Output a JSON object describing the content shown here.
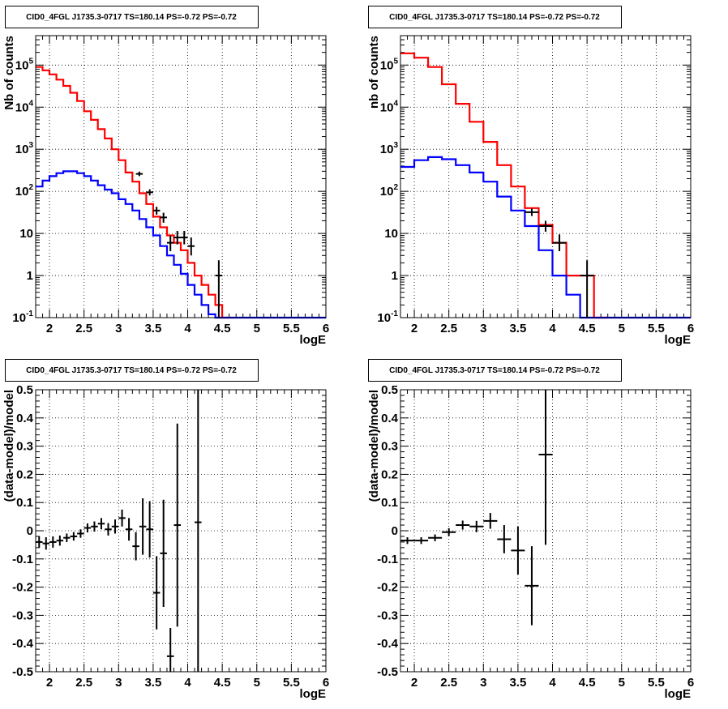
{
  "chart_data": [
    {
      "panel": "top-left",
      "type": "step-histogram-with-errorbars",
      "title": "CID0_4FGL J1735.3-0717 TS=180.14 PS=-0.72 PS=-0.72",
      "xlabel": "logE",
      "ylabel": "Nb of counts",
      "xlim": [
        1.8,
        6
      ],
      "ylim": [
        0.1,
        500000
      ],
      "yscale": "log",
      "grid": true,
      "x_ticks": [
        "2",
        "2.5",
        "3",
        "3.5",
        "4",
        "4.5",
        "5",
        "5.5",
        "6"
      ],
      "y_ticks": [
        "10^-1",
        "1",
        "10",
        "10^2",
        "10^3",
        "10^4",
        "10^5"
      ],
      "bin_width": 0.1,
      "series": [
        {
          "color": "#ff0000",
          "style": "step",
          "bin_edges": [
            1.8,
            1.9,
            2.0,
            2.1,
            2.2,
            2.3,
            2.4,
            2.5,
            2.6,
            2.7,
            2.8,
            2.9,
            3.0,
            3.1,
            3.2,
            3.3,
            3.4,
            3.5,
            3.6,
            3.7,
            3.8,
            3.9,
            4.0,
            4.1,
            4.2,
            4.3,
            4.4,
            4.5,
            4.6
          ],
          "values": [
            90000,
            75000,
            60000,
            45000,
            32000,
            22000,
            14000,
            8000,
            5000,
            3000,
            1800,
            1000,
            550,
            280,
            170,
            90,
            50,
            25,
            14,
            9,
            6,
            4,
            2,
            1,
            0.6,
            0.35,
            0.2,
            0.1
          ]
        },
        {
          "color": "#0000ff",
          "style": "step",
          "bin_edges": [
            1.8,
            1.9,
            2.0,
            2.1,
            2.2,
            2.3,
            2.4,
            2.5,
            2.6,
            2.7,
            2.8,
            2.9,
            3.0,
            3.1,
            3.2,
            3.3,
            3.4,
            3.5,
            3.6,
            3.7,
            3.8,
            3.9,
            4.0,
            4.1,
            4.2,
            4.3,
            4.4,
            4.5,
            6.0
          ],
          "values": [
            130,
            180,
            230,
            270,
            300,
            300,
            270,
            230,
            180,
            140,
            110,
            90,
            65,
            50,
            35,
            22,
            14,
            9,
            5,
            3,
            1.8,
            1.1,
            0.6,
            0.35,
            0.2,
            0.12,
            0.1,
            0.1
          ]
        }
      ],
      "points": [
        {
          "x": 3.3,
          "y": 260,
          "xerr": 0.05,
          "ylo": 230,
          "yhi": 295
        },
        {
          "x": 3.45,
          "y": 95,
          "xerr": 0.05,
          "ylo": 80,
          "yhi": 112
        },
        {
          "x": 3.55,
          "y": 35,
          "xerr": 0.05,
          "ylo": 28,
          "yhi": 43
        },
        {
          "x": 3.65,
          "y": 24,
          "xerr": 0.05,
          "ylo": 18,
          "yhi": 31
        },
        {
          "x": 3.75,
          "y": 6,
          "xerr": 0.05,
          "ylo": 3.8,
          "yhi": 9
        },
        {
          "x": 3.85,
          "y": 8,
          "xerr": 0.05,
          "ylo": 5.5,
          "yhi": 11.5
        },
        {
          "x": 3.95,
          "y": 8,
          "xerr": 0.05,
          "ylo": 5.5,
          "yhi": 11.5
        },
        {
          "x": 4.05,
          "y": 5,
          "xerr": 0.05,
          "ylo": 3.0,
          "yhi": 8
        },
        {
          "x": 4.45,
          "y": 1,
          "xerr": 0.05,
          "ylo": 0.1,
          "yhi": 2.3
        }
      ]
    },
    {
      "panel": "top-right",
      "type": "step-histogram-with-errorbars",
      "title": "CID0_4FGL J1735.3-0717 TS=180.14 PS=-0.72 PS=-0.72",
      "xlabel": "logE",
      "ylabel": "nb of counts",
      "xlim": [
        1.8,
        6
      ],
      "ylim": [
        0.1,
        500000
      ],
      "yscale": "log",
      "grid": true,
      "x_ticks": [
        "2",
        "2.5",
        "3",
        "3.5",
        "4",
        "4.5",
        "5",
        "5.5",
        "6"
      ],
      "y_ticks": [
        "10^-1",
        "1",
        "10",
        "10^2",
        "10^3",
        "10^4",
        "10^5"
      ],
      "bin_width": 0.2,
      "series": [
        {
          "color": "#ff0000",
          "style": "step",
          "bin_edges": [
            1.8,
            2.0,
            2.2,
            2.4,
            2.6,
            2.8,
            3.0,
            3.2,
            3.4,
            3.6,
            3.8,
            4.0,
            4.2,
            4.4,
            4.6,
            4.8
          ],
          "values": [
            190000,
            150000,
            90000,
            35000,
            12000,
            4500,
            1500,
            420,
            130,
            40,
            16,
            6,
            1,
            1,
            0.1
          ]
        },
        {
          "color": "#0000ff",
          "style": "step",
          "bin_edges": [
            1.8,
            2.0,
            2.2,
            2.4,
            2.6,
            2.8,
            3.0,
            3.2,
            3.4,
            3.6,
            3.8,
            4.0,
            4.2,
            4.4,
            4.6,
            6.0
          ],
          "values": [
            380,
            550,
            650,
            580,
            420,
            280,
            170,
            75,
            35,
            15,
            4,
            1,
            0.35,
            0.1,
            0.1
          ]
        }
      ],
      "points": [
        {
          "x": 3.7,
          "y": 32,
          "xerr": 0.1,
          "ylo": 26,
          "yhi": 39
        },
        {
          "x": 3.9,
          "y": 15,
          "xerr": 0.1,
          "ylo": 11,
          "yhi": 20
        },
        {
          "x": 4.1,
          "y": 6,
          "xerr": 0.1,
          "ylo": 3.8,
          "yhi": 9.5
        },
        {
          "x": 4.5,
          "y": 1,
          "xerr": 0.1,
          "ylo": 0.1,
          "yhi": 2.3
        }
      ]
    },
    {
      "panel": "bottom-left",
      "type": "scatter-errorbars",
      "title": "CID0_4FGL J1735.3-0717 TS=180.14 PS=-0.72 PS=-0.72",
      "xlabel": "logE",
      "ylabel": "(data-model)/model",
      "xlim": [
        1.8,
        6
      ],
      "ylim": [
        -0.5,
        0.5
      ],
      "grid": true,
      "x_ticks": [
        "2",
        "2.5",
        "3",
        "3.5",
        "4",
        "4.5",
        "5",
        "5.5",
        "6"
      ],
      "y_ticks": [
        "-0.5",
        "-0.4",
        "-0.3",
        "-0.2",
        "-0.1",
        "0",
        "0.1",
        "0.2",
        "0.3",
        "0.4",
        "0.5"
      ],
      "points": [
        {
          "x": 1.85,
          "y": -0.04,
          "xerr": 0.05,
          "yerr": 0.02
        },
        {
          "x": 1.95,
          "y": -0.045,
          "xerr": 0.05,
          "yerr": 0.022
        },
        {
          "x": 2.05,
          "y": -0.04,
          "xerr": 0.05,
          "yerr": 0.02
        },
        {
          "x": 2.15,
          "y": -0.035,
          "xerr": 0.05,
          "yerr": 0.018
        },
        {
          "x": 2.25,
          "y": -0.025,
          "xerr": 0.05,
          "yerr": 0.015
        },
        {
          "x": 2.35,
          "y": -0.02,
          "xerr": 0.05,
          "yerr": 0.015
        },
        {
          "x": 2.45,
          "y": -0.01,
          "xerr": 0.05,
          "yerr": 0.015
        },
        {
          "x": 2.55,
          "y": 0.01,
          "xerr": 0.05,
          "yerr": 0.016
        },
        {
          "x": 2.65,
          "y": 0.015,
          "xerr": 0.05,
          "yerr": 0.018
        },
        {
          "x": 2.75,
          "y": 0.025,
          "xerr": 0.05,
          "yerr": 0.02
        },
        {
          "x": 2.85,
          "y": 0.005,
          "xerr": 0.05,
          "yerr": 0.022
        },
        {
          "x": 2.95,
          "y": 0.015,
          "xerr": 0.05,
          "yerr": 0.025
        },
        {
          "x": 3.05,
          "y": 0.045,
          "xerr": 0.05,
          "yerr": 0.03
        },
        {
          "x": 3.15,
          "y": 0.005,
          "xerr": 0.05,
          "yerr": 0.04
        },
        {
          "x": 3.25,
          "y": -0.055,
          "xerr": 0.05,
          "yerr": 0.05
        },
        {
          "x": 3.35,
          "y": 0.015,
          "xerr": 0.05,
          "yerr": 0.1
        },
        {
          "x": 3.45,
          "y": 0.005,
          "xerr": 0.05,
          "yerr": 0.1
        },
        {
          "x": 3.55,
          "y": -0.22,
          "xerr": 0.05,
          "yerr": 0.13
        },
        {
          "x": 3.65,
          "y": -0.08,
          "xerr": 0.05,
          "yerr": 0.19
        },
        {
          "x": 3.75,
          "y": -0.445,
          "xerr": 0.05,
          "yerr": 0.1
        },
        {
          "x": 3.85,
          "y": 0.02,
          "xerr": 0.05,
          "yerr": 0.36
        },
        {
          "x": 4.15,
          "y": 0.03,
          "xerr": 0.05,
          "yerr": 0.75
        }
      ]
    },
    {
      "panel": "bottom-right",
      "type": "scatter-errorbars",
      "title": "CID0_4FGL J1735.3-0717 TS=180.14 PS=-0.72 PS=-0.72",
      "xlabel": "logE",
      "ylabel": "(data-model)/model",
      "xlim": [
        1.8,
        6
      ],
      "ylim": [
        -0.5,
        0.5
      ],
      "grid": true,
      "x_ticks": [
        "2",
        "2.5",
        "3",
        "3.5",
        "4",
        "4.5",
        "5",
        "5.5",
        "6"
      ],
      "y_ticks": [
        "-0.5",
        "-0.4",
        "-0.3",
        "-0.2",
        "-0.1",
        "0",
        "0.1",
        "0.2",
        "0.3",
        "0.4",
        "0.5"
      ],
      "points": [
        {
          "x": 1.9,
          "y": -0.035,
          "xerr": 0.1,
          "yerr": 0.012
        },
        {
          "x": 2.1,
          "y": -0.035,
          "xerr": 0.1,
          "yerr": 0.012
        },
        {
          "x": 2.3,
          "y": -0.025,
          "xerr": 0.1,
          "yerr": 0.012
        },
        {
          "x": 2.5,
          "y": -0.005,
          "xerr": 0.1,
          "yerr": 0.014
        },
        {
          "x": 2.7,
          "y": 0.02,
          "xerr": 0.1,
          "yerr": 0.016
        },
        {
          "x": 2.9,
          "y": 0.015,
          "xerr": 0.1,
          "yerr": 0.02
        },
        {
          "x": 3.1,
          "y": 0.035,
          "xerr": 0.1,
          "yerr": 0.028
        },
        {
          "x": 3.3,
          "y": -0.03,
          "xerr": 0.1,
          "yerr": 0.05
        },
        {
          "x": 3.5,
          "y": -0.07,
          "xerr": 0.1,
          "yerr": 0.085
        },
        {
          "x": 3.7,
          "y": -0.195,
          "xerr": 0.1,
          "yerr": 0.14
        },
        {
          "x": 3.9,
          "y": 0.27,
          "xerr": 0.1,
          "yerr": 0.32
        }
      ]
    }
  ]
}
